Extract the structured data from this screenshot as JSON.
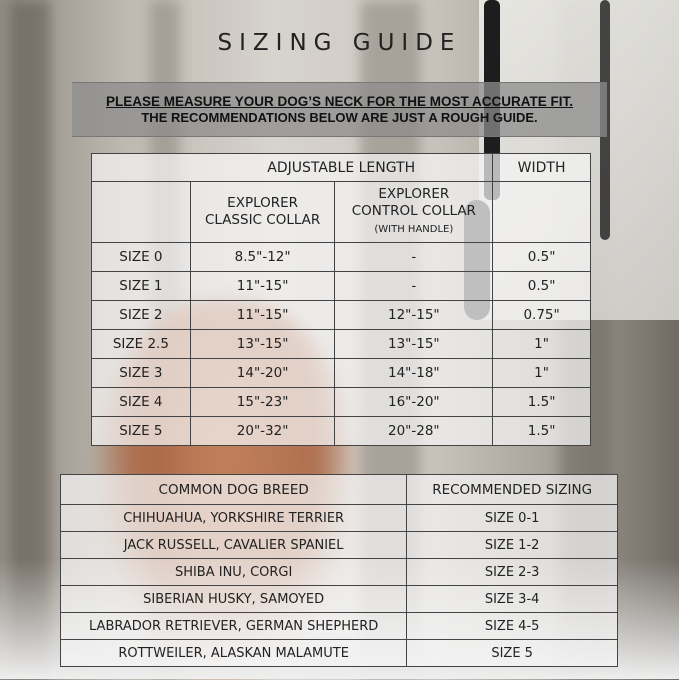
{
  "title": "SIZING GUIDE",
  "notice": {
    "line1": "PLEASE MEASURE YOUR DOG’S NECK FOR THE MOST ACCURATE FIT.",
    "line2": "THE RECOMMENDATIONS BELOW ARE JUST A ROUGH GUIDE."
  },
  "size_table": {
    "group_headers": [
      "ADJUSTABLE LENGTH",
      "WIDTH"
    ],
    "columns": [
      {
        "line1": "EXPLORER",
        "line2": "CLASSIC COLLAR"
      },
      {
        "line1": "EXPLORER",
        "line2": "CONTROL COLLAR",
        "note": "(WITH HANDLE)"
      }
    ],
    "rows": [
      [
        "SIZE 0",
        "8.5\"-12\"",
        "-",
        "0.5\""
      ],
      [
        "SIZE 1",
        "11\"-15\"",
        "-",
        "0.5\""
      ],
      [
        "SIZE 2",
        "11\"-15\"",
        "12\"-15\"",
        "0.75\""
      ],
      [
        "SIZE 2.5",
        "13\"-15\"",
        "13\"-15\"",
        "1\""
      ],
      [
        "SIZE 3",
        "14\"-20\"",
        "14\"-18\"",
        "1\""
      ],
      [
        "SIZE 4",
        "15\"-23\"",
        "16\"-20\"",
        "1.5\""
      ],
      [
        "SIZE 5",
        "20\"-32\"",
        "20\"-28\"",
        "1.5\""
      ]
    ]
  },
  "breed_table": {
    "headers": [
      "COMMON DOG BREED",
      "RECOMMENDED SIZING"
    ],
    "rows": [
      [
        "CHIHUAHUA, YORKSHIRE TERRIER",
        "SIZE 0-1"
      ],
      [
        "JACK RUSSELL, CAVALIER SPANIEL",
        "SIZE 1-2"
      ],
      [
        "SHIBA INU, CORGI",
        "SIZE 2-3"
      ],
      [
        "SIBERIAN HUSKY, SAMOYED",
        "SIZE 3-4"
      ],
      [
        "LABRADOR RETRIEVER, GERMAN SHEPHERD",
        "SIZE 4-5"
      ],
      [
        "ROTTWEILER, ALASKAN MALAMUTE",
        "SIZE 5"
      ]
    ]
  }
}
